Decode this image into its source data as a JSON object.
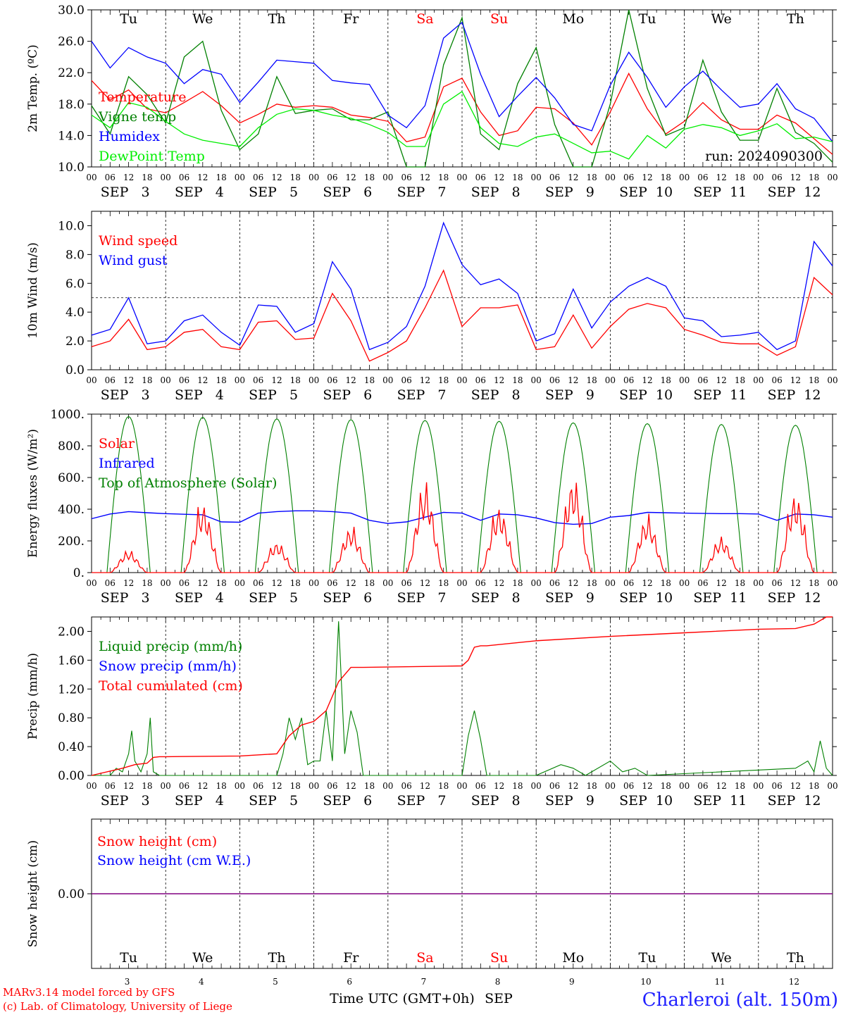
{
  "chart_data": [
    {
      "type": "line",
      "id": "temp",
      "ylabel": "2m Temp. (ºC)",
      "ylim": [
        10,
        30
      ],
      "yticks": [
        "10.0",
        "14.0",
        "18.0",
        "22.0",
        "26.0",
        "30.0"
      ],
      "day_names": [
        "Tu",
        "We",
        "Th",
        "Fr",
        "Sa",
        "Su",
        "Mo",
        "Tu",
        "We",
        "Th"
      ],
      "weekend_indices": [
        4,
        5
      ],
      "run_label": "run: 2024090300",
      "series": [
        {
          "name": "Temperature",
          "color": "#ff0000",
          "x": [
            0,
            6,
            12,
            18,
            24,
            30,
            36,
            42,
            48,
            54,
            60,
            66,
            72,
            78,
            84,
            90,
            96,
            102,
            108,
            114,
            120,
            126,
            132,
            138,
            144,
            150,
            156,
            162,
            168,
            174,
            180,
            186,
            192,
            198,
            204,
            210,
            216,
            222,
            228,
            234,
            240
          ],
          "values": [
            21,
            18.5,
            19.8,
            17.4,
            16.9,
            18.2,
            19.6,
            17.8,
            15.6,
            16.7,
            18,
            17.6,
            17.8,
            17.6,
            16.6,
            16.3,
            15.8,
            13.2,
            13.8,
            20.2,
            21.3,
            17,
            14,
            14.6,
            17.6,
            17.4,
            15.6,
            12.8,
            17,
            21.9,
            17.4,
            14.2,
            15.8,
            18.2,
            16,
            14.8,
            14.8,
            16.6,
            15.6,
            13.6,
            11.6
          ]
        },
        {
          "name": "Vigne temp",
          "color": "#008000",
          "x": [
            0,
            6,
            12,
            18,
            24,
            30,
            36,
            42,
            48,
            54,
            60,
            66,
            72,
            78,
            84,
            90,
            96,
            102,
            108,
            114,
            120,
            126,
            132,
            138,
            144,
            150,
            156,
            162,
            168,
            174,
            180,
            186,
            192,
            198,
            204,
            210,
            216,
            222,
            228,
            234,
            240
          ],
          "values": [
            17.8,
            14.2,
            21.5,
            19.2,
            15.6,
            24,
            26,
            17.2,
            12.2,
            14.2,
            21.5,
            16.8,
            17.2,
            17.4,
            16,
            16,
            17,
            10,
            10,
            23,
            29,
            14.2,
            12.2,
            20.6,
            25.2,
            15.4,
            10,
            10,
            18,
            30,
            20,
            14,
            15,
            23.6,
            17,
            13.4,
            13.4,
            20,
            14.4,
            13,
            10.6
          ]
        },
        {
          "name": "Humidex",
          "color": "#0000ff",
          "x": [
            0,
            6,
            12,
            18,
            24,
            30,
            36,
            42,
            48,
            54,
            60,
            66,
            72,
            78,
            84,
            90,
            96,
            102,
            108,
            114,
            120,
            126,
            132,
            138,
            144,
            150,
            156,
            162,
            168,
            174,
            180,
            186,
            192,
            198,
            204,
            210,
            216,
            222,
            228,
            234,
            240
          ],
          "values": [
            26,
            22.6,
            25.2,
            24,
            23.2,
            20.6,
            22.4,
            21.8,
            18.2,
            20.8,
            23.6,
            23.4,
            23.2,
            21,
            20.7,
            20.5,
            16.6,
            15,
            17.8,
            26.4,
            28.4,
            21.8,
            16.4,
            19,
            21.4,
            18.8,
            15.4,
            14.6,
            20.4,
            24.6,
            21.4,
            17.6,
            20.2,
            22.2,
            19.8,
            17.6,
            18,
            20.6,
            17.4,
            16.2,
            13.2
          ]
        },
        {
          "name": "DewPoint Temp",
          "color": "#00ee00",
          "x": [
            0,
            6,
            12,
            18,
            24,
            30,
            36,
            42,
            48,
            54,
            60,
            66,
            72,
            78,
            84,
            90,
            96,
            102,
            108,
            114,
            120,
            126,
            132,
            138,
            144,
            150,
            156,
            162,
            168,
            174,
            180,
            186,
            192,
            198,
            204,
            210,
            216,
            222,
            228,
            234,
            240
          ],
          "values": [
            16.6,
            15,
            18.2,
            17.6,
            15.8,
            14.2,
            13.4,
            13,
            12.6,
            15,
            16.7,
            17.4,
            17.2,
            16.6,
            16.2,
            15.4,
            14.4,
            12.6,
            12.6,
            18,
            19.6,
            15,
            13,
            12.6,
            13.8,
            14.2,
            13,
            11.8,
            12,
            11,
            14,
            12.4,
            14.8,
            15.4,
            15,
            14,
            14.6,
            15.5,
            13.6,
            13.8,
            13.2
          ]
        }
      ]
    },
    {
      "type": "line",
      "id": "wind",
      "ylabel": "10m Wind (m/s)",
      "ylim": [
        0,
        11
      ],
      "yticks": [
        "0.0",
        "2.0",
        "4.0",
        "6.0",
        "8.0",
        "10.0"
      ],
      "reference_line": 5,
      "series": [
        {
          "name": "Wind speed",
          "color": "#ff0000",
          "x": [
            0,
            6,
            12,
            18,
            24,
            30,
            36,
            42,
            48,
            54,
            60,
            66,
            72,
            78,
            84,
            90,
            96,
            102,
            108,
            114,
            120,
            126,
            132,
            138,
            144,
            150,
            156,
            162,
            168,
            174,
            180,
            186,
            192,
            198,
            204,
            210,
            216,
            222,
            228,
            234,
            240
          ],
          "values": [
            1.6,
            2,
            3.5,
            1.4,
            1.6,
            2.6,
            2.8,
            1.6,
            1.4,
            3.3,
            3.4,
            2.1,
            2.2,
            5.3,
            3.4,
            0.6,
            1.2,
            2,
            4.3,
            6.9,
            3,
            4.3,
            4.3,
            4.5,
            1.4,
            1.6,
            3.8,
            1.5,
            3,
            4.2,
            4.6,
            4.3,
            2.8,
            2.4,
            1.9,
            1.8,
            1.8,
            1,
            1.6,
            6.4,
            5.2
          ]
        },
        {
          "name": "Wind gust",
          "color": "#0000ff",
          "x": [
            0,
            6,
            12,
            18,
            24,
            30,
            36,
            42,
            48,
            54,
            60,
            66,
            72,
            78,
            84,
            90,
            96,
            102,
            108,
            114,
            120,
            126,
            132,
            138,
            144,
            150,
            156,
            162,
            168,
            174,
            180,
            186,
            192,
            198,
            204,
            210,
            216,
            222,
            228,
            234,
            240
          ],
          "values": [
            2.4,
            2.8,
            5,
            1.8,
            2,
            3.4,
            3.8,
            2.6,
            1.7,
            4.5,
            4.4,
            2.6,
            3.2,
            7.5,
            5.6,
            1.4,
            1.9,
            3,
            5.8,
            10.2,
            7.3,
            5.9,
            6.3,
            5.3,
            2,
            2.5,
            5.6,
            2.9,
            4.7,
            5.8,
            6.4,
            5.8,
            3.6,
            3.4,
            2.3,
            2.4,
            2.6,
            1.4,
            2,
            8.9,
            7.2
          ]
        }
      ]
    },
    {
      "type": "line",
      "id": "flux",
      "ylabel": "Energy fluxes (W/m²)",
      "ylim": [
        0,
        1000
      ],
      "yticks": [
        "0.",
        "200.",
        "400.",
        "600.",
        "800.",
        "1000."
      ],
      "solar_peaks": [
        150,
        470,
        210,
        310,
        610,
        450,
        650,
        380,
        240,
        540
      ],
      "toa_peaks": [
        985,
        980,
        970,
        965,
        960,
        955,
        945,
        940,
        935,
        930
      ],
      "infrared": {
        "x": [
          0,
          6,
          12,
          18,
          24,
          30,
          36,
          42,
          48,
          54,
          60,
          66,
          72,
          78,
          84,
          90,
          96,
          102,
          108,
          114,
          120,
          126,
          132,
          138,
          144,
          150,
          156,
          162,
          168,
          174,
          180,
          186,
          192,
          198,
          204,
          210,
          216,
          222,
          228,
          234,
          240
        ],
        "values": [
          340,
          370,
          385,
          378,
          372,
          368,
          365,
          320,
          318,
          375,
          385,
          390,
          390,
          385,
          375,
          330,
          310,
          320,
          350,
          380,
          375,
          330,
          370,
          365,
          345,
          315,
          305,
          310,
          350,
          360,
          380,
          378,
          375,
          374,
          372,
          372,
          370,
          330,
          370,
          365,
          350
        ]
      },
      "series": [
        {
          "name": "Solar",
          "color": "#ff0000"
        },
        {
          "name": "Infrared",
          "color": "#0000ff"
        },
        {
          "name": "Top of Atmosphere (Solar)",
          "color": "#008000"
        }
      ]
    },
    {
      "type": "line",
      "id": "precip",
      "ylabel": "Precip (mm/h)",
      "ylim": [
        0,
        2.2
      ],
      "yticks": [
        "0.00",
        "0.40",
        "0.80",
        "1.20",
        "1.60",
        "2.00"
      ],
      "liquid": {
        "x": [
          0,
          6,
          8,
          10,
          12,
          13,
          14,
          16,
          18,
          19,
          20,
          22,
          24,
          48,
          60,
          62,
          64,
          66,
          68,
          70,
          72,
          74,
          76,
          78,
          80,
          82,
          84,
          86,
          88,
          90,
          92,
          120,
          122,
          124,
          126,
          128,
          130,
          132,
          144,
          152,
          156,
          160,
          168,
          172,
          176,
          180,
          228,
          232,
          234,
          236,
          238,
          240
        ],
        "values": [
          0,
          0,
          0.1,
          0.05,
          0.3,
          0.62,
          0.2,
          0.05,
          0.3,
          0.8,
          0.05,
          0,
          0,
          0,
          0,
          0.3,
          0.8,
          0.5,
          0.8,
          0.15,
          0.2,
          0.2,
          0.9,
          0.2,
          2.14,
          0.3,
          0.9,
          0.6,
          0,
          0,
          0,
          0,
          0.55,
          0.9,
          0.5,
          0,
          0,
          0,
          0,
          0.15,
          0.1,
          0,
          0.2,
          0.05,
          0.1,
          0,
          0.1,
          0.2,
          0.05,
          0.48,
          0.1,
          0
        ]
      },
      "cumulated": {
        "x": [
          0,
          10,
          14,
          18,
          20,
          22,
          24,
          48,
          60,
          64,
          68,
          72,
          76,
          80,
          84,
          86,
          88,
          120,
          122,
          124,
          126,
          128,
          144,
          168,
          192,
          216,
          228,
          234,
          238,
          240
        ],
        "values": [
          0,
          0.1,
          0.15,
          0.17,
          0.25,
          0.26,
          0.26,
          0.27,
          0.3,
          0.55,
          0.7,
          0.75,
          0.9,
          1.3,
          1.5,
          1.5,
          1.5,
          1.52,
          1.6,
          1.78,
          1.8,
          1.8,
          1.87,
          1.93,
          1.98,
          2.03,
          2.04,
          2.1,
          2.2,
          2.2
        ]
      },
      "series": [
        {
          "name": "Liquid precip (mm/h)",
          "color": "#008000"
        },
        {
          "name": "Snow precip (mm/h)",
          "color": "#0000ff"
        },
        {
          "name": "Total cumulated (cm)",
          "color": "#ff0000"
        }
      ]
    },
    {
      "type": "line",
      "id": "snow",
      "ylabel": "Snow height (cm)",
      "yticks": [
        "0.00"
      ],
      "series": [
        {
          "name": "Snow height (cm)",
          "color": "#ff0000"
        },
        {
          "name": "Snow height (cm W.E.)",
          "color": "#0000ff"
        }
      ]
    }
  ],
  "x_hour_labels": [
    "00",
    "06",
    "12",
    "18"
  ],
  "x_end_label": "00",
  "month": "SEP",
  "dates": [
    "3",
    "4",
    "5",
    "6",
    "7",
    "8",
    "9",
    "10",
    "11",
    "12"
  ],
  "day_names": [
    "Tu",
    "We",
    "Th",
    "Fr",
    "Sa",
    "Su",
    "Mo",
    "Tu",
    "We",
    "Th"
  ],
  "xlabel": "Time UTC (GMT+0h)",
  "credit_line1": "MARv3.14 model forced by GFS",
  "credit_line2": "(c) Lab. of Climatology, University of Liege",
  "station": "Charleroi (alt. 150m)",
  "colors": {
    "weekend": "#ff0000",
    "axis": "#000000",
    "legend_red": "#ff0000",
    "legend_blue": "#0000ff",
    "legend_green": "#008000",
    "dewpoint": "#00ee00",
    "snow_line": "#800080"
  }
}
